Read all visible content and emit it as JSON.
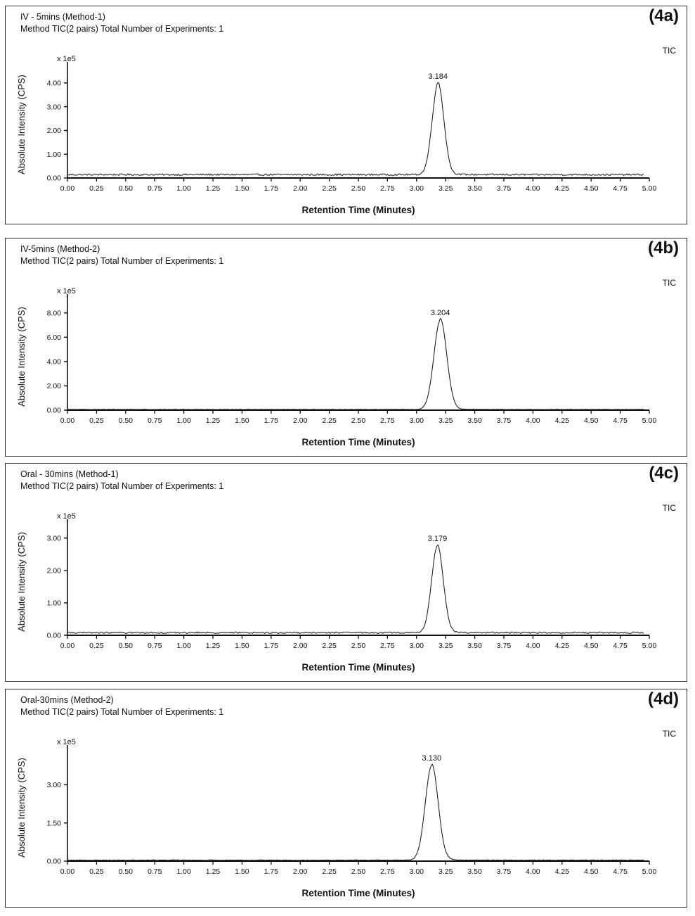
{
  "page": {
    "background": "#ffffff",
    "ink": "#111111"
  },
  "shared_x_axis": {
    "min": 0.0,
    "max": 5.0,
    "step": 0.25,
    "labels": [
      "0.00",
      "0.25",
      "0.50",
      "0.75",
      "1.00",
      "1.25",
      "1.50",
      "1.75",
      "2.00",
      "2.25",
      "2.50",
      "2.75",
      "3.00",
      "3.25",
      "3.50",
      "3.75",
      "4.00",
      "4.25",
      "4.50",
      "4.75",
      "5.00"
    ]
  },
  "chart_data": [
    {
      "type": "line",
      "panel_label": "(4a)",
      "trace_label": "TIC",
      "title": "IV - 5mins (Method-1)",
      "subtitle": "Method TIC(2 pairs) Total Number of Experiments: 1",
      "ylabel": "Absolute Intensity (CPS)",
      "y_multiplier": "x 1e5",
      "xlabel": "Retention Time (Minutes)",
      "xlim": [
        0,
        5
      ],
      "ylim": [
        0,
        4.5
      ],
      "yticks": [
        {
          "value": 0.0,
          "label": "0.00"
        },
        {
          "value": 1.0,
          "label": "1.00"
        },
        {
          "value": 2.0,
          "label": "2.00"
        },
        {
          "value": 3.0,
          "label": "3.00"
        },
        {
          "value": 4.0,
          "label": "4.00"
        }
      ],
      "peak": {
        "retention_time": 3.184,
        "label": "3.184",
        "height": 3.82,
        "width_sigma": 0.05
      },
      "baseline": 0.14,
      "noise": 0.035
    },
    {
      "type": "line",
      "panel_label": "(4b)",
      "trace_label": "TIC",
      "title": "IV-5mins (Method-2)",
      "subtitle": "Method TIC(2 pairs) Total Number of Experiments: 1",
      "ylabel": "Absolute Intensity (CPS)",
      "y_multiplier": "x 1e5",
      "xlabel": "Retention Time (Minutes)",
      "xlim": [
        0,
        5
      ],
      "ylim": [
        0,
        8.8
      ],
      "yticks": [
        {
          "value": 0.0,
          "label": "0.00"
        },
        {
          "value": 2.0,
          "label": "2.00"
        },
        {
          "value": 4.0,
          "label": "4.00"
        },
        {
          "value": 6.0,
          "label": "6.00"
        },
        {
          "value": 8.0,
          "label": "8.00"
        }
      ],
      "peak": {
        "retention_time": 3.204,
        "label": "3.204",
        "height": 7.35,
        "width_sigma": 0.055
      },
      "baseline": 0.06,
      "noise": 0.012
    },
    {
      "type": "line",
      "panel_label": "(4c)",
      "trace_label": "TIC",
      "title": "Oral - 30mins (Method-1)",
      "subtitle": "Method TIC(2 pairs) Total Number of Experiments: 1",
      "ylabel": "Absolute Intensity (CPS)",
      "y_multiplier": "x 1e5",
      "xlabel": "Retention Time (Minutes)",
      "xlim": [
        0,
        5
      ],
      "ylim": [
        0,
        3.3
      ],
      "yticks": [
        {
          "value": 0.0,
          "label": "0.00"
        },
        {
          "value": 1.0,
          "label": "1.00"
        },
        {
          "value": 2.0,
          "label": "2.00"
        },
        {
          "value": 3.0,
          "label": "3.00"
        }
      ],
      "peak": {
        "retention_time": 3.179,
        "label": "3.179",
        "height": 2.68,
        "width_sigma": 0.05
      },
      "baseline": 0.08,
      "noise": 0.022
    },
    {
      "type": "line",
      "panel_label": "(4d)",
      "trace_label": "TIC",
      "title": "Oral-30mins (Method-2)",
      "subtitle": "Method TIC(2 pairs) Total Number of Experiments: 1",
      "ylabel": "Absolute Intensity (CPS)",
      "y_multiplier": "x 1e5",
      "xlabel": "Retention Time (Minutes)",
      "xlim": [
        0,
        5
      ],
      "ylim": [
        0,
        4.2
      ],
      "yticks": [
        {
          "value": 0.0,
          "label": "0.00"
        },
        {
          "value": 1.5,
          "label": "1.50"
        },
        {
          "value": 3.0,
          "label": "3.00"
        }
      ],
      "peak": {
        "retention_time": 3.13,
        "label": "3.130",
        "height": 3.72,
        "width_sigma": 0.055
      },
      "baseline": 0.04,
      "noise": 0.01
    }
  ]
}
